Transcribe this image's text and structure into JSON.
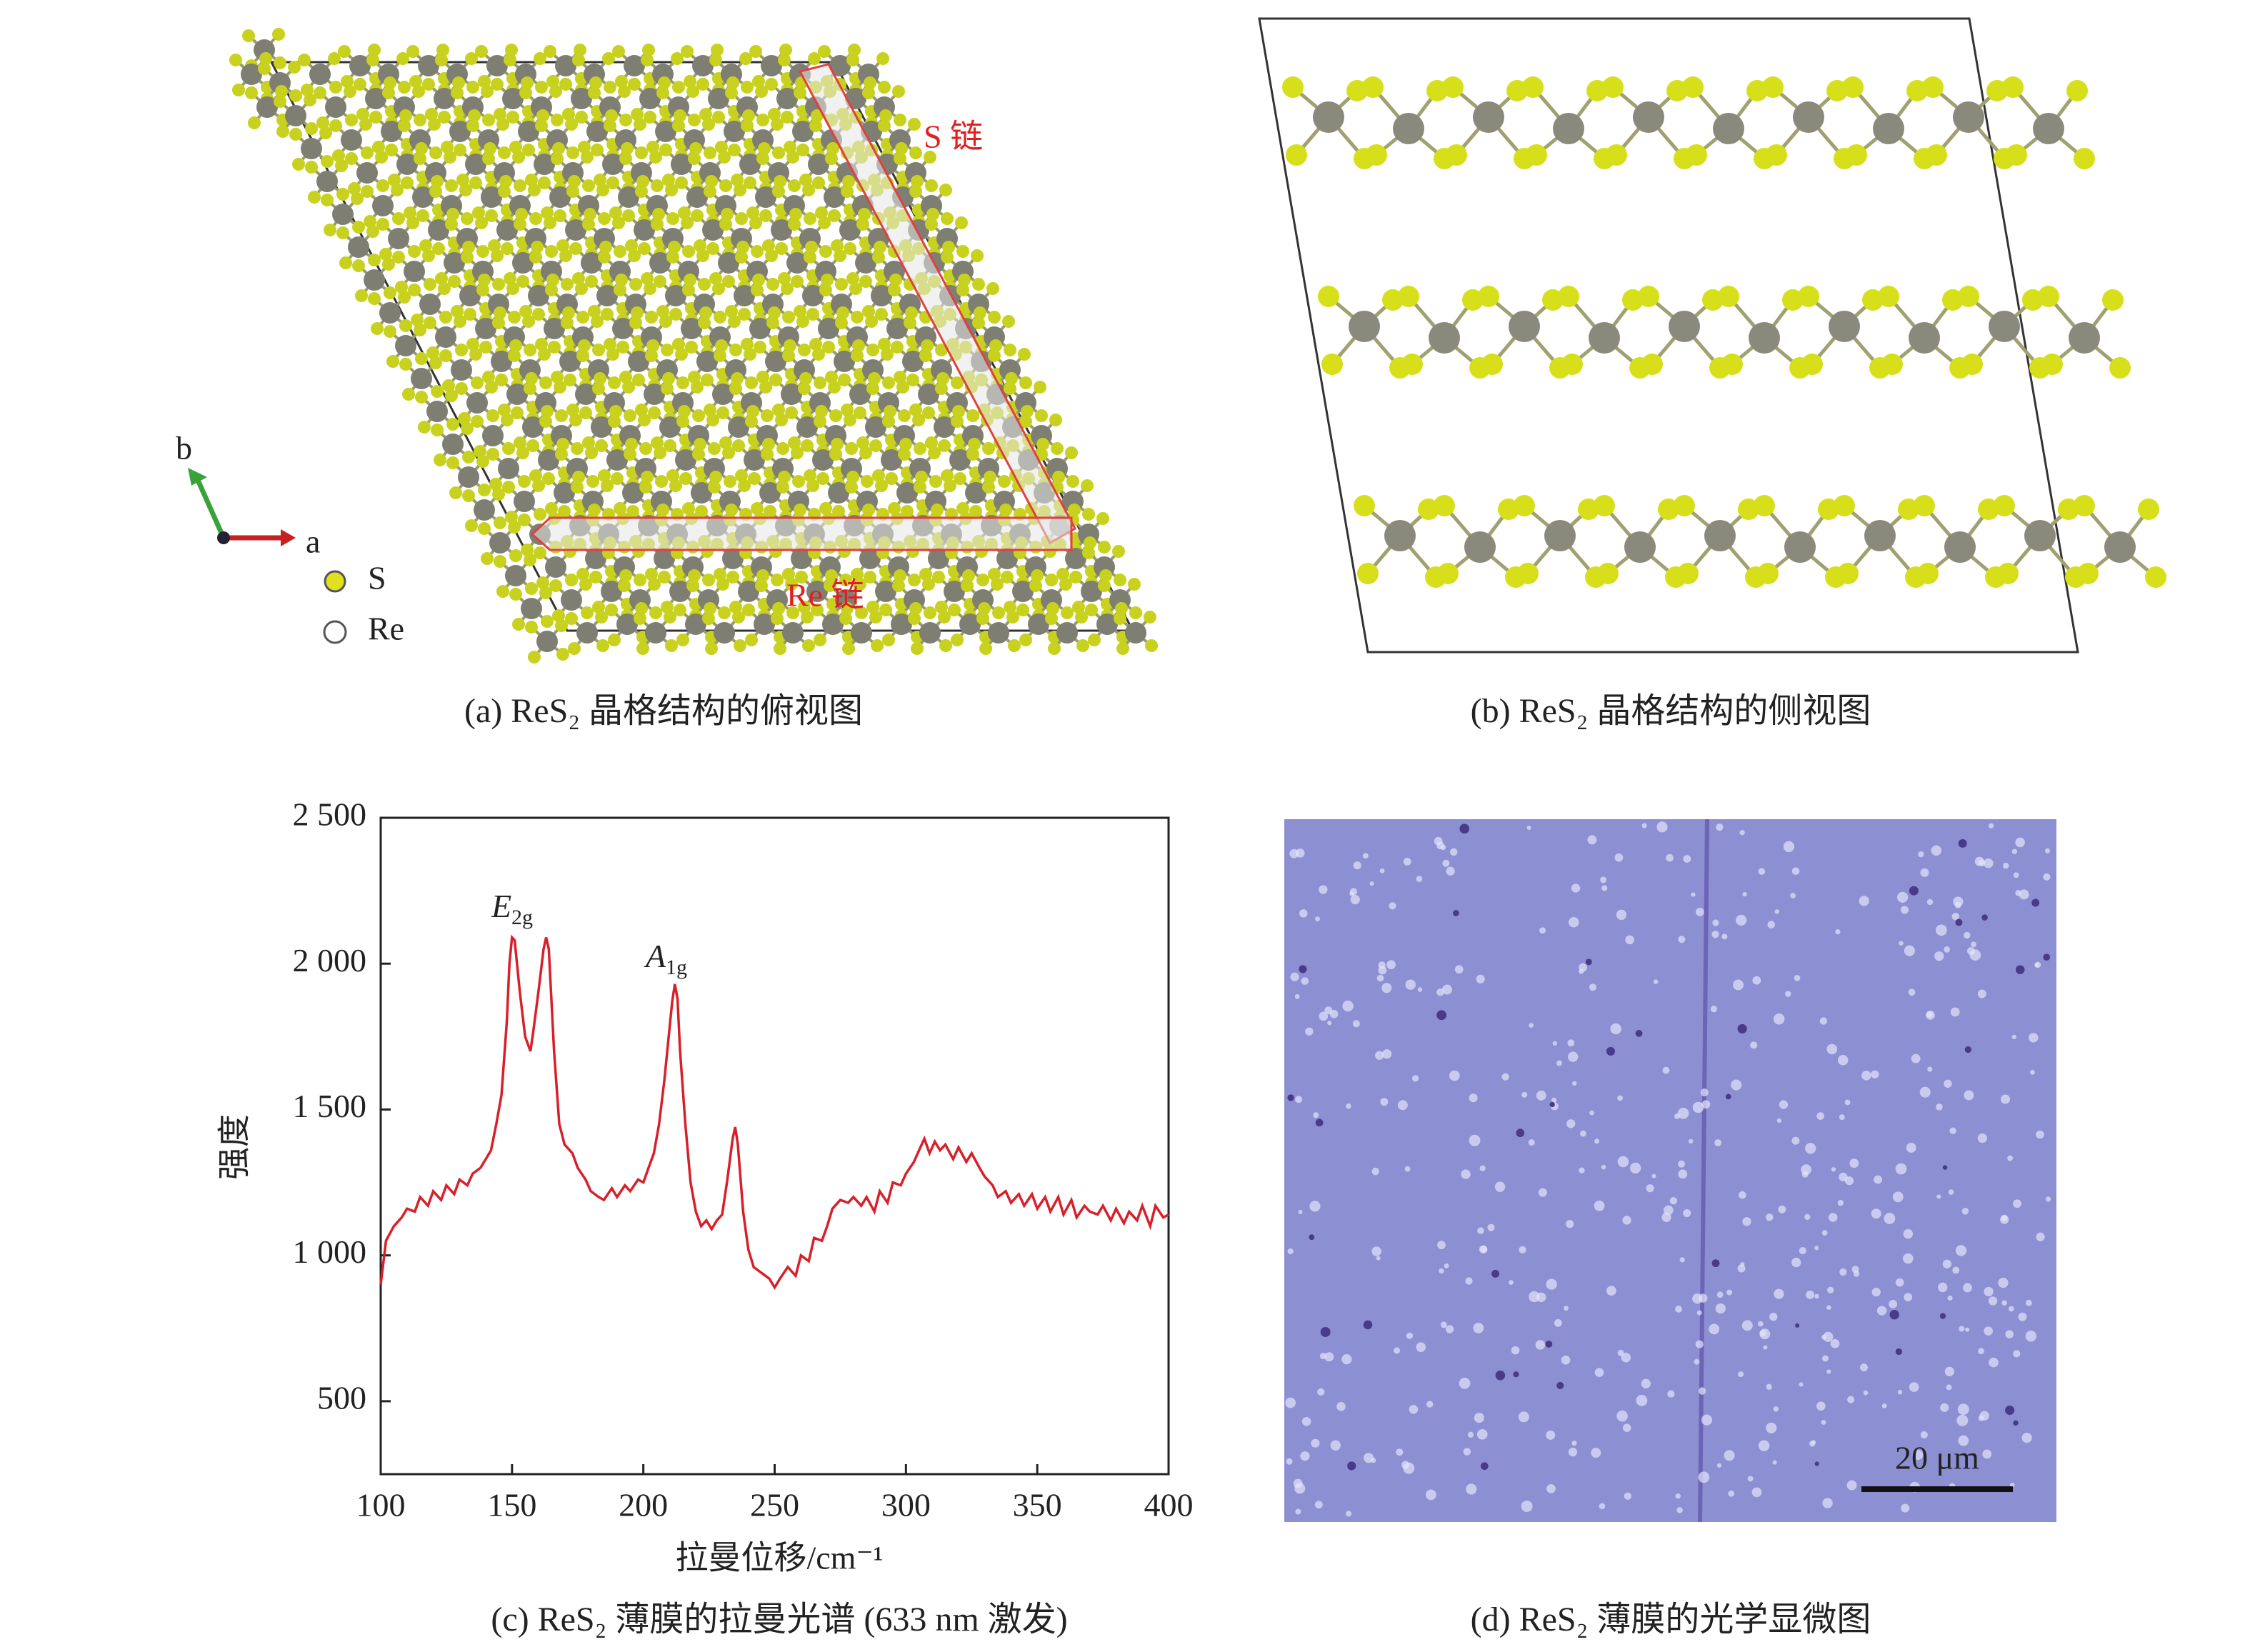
{
  "panel_a": {
    "caption": "(a) ReS₂ 晶格结构的俯视图",
    "chain_labels": [
      "S 链",
      "Re 链"
    ],
    "axes": [
      "b",
      "a"
    ],
    "legend": [
      "S",
      "Re"
    ]
  },
  "panel_b": {
    "caption": "(b) ReS₂ 晶格结构的侧视图"
  },
  "chart_data": {
    "type": "line",
    "caption": "(c) ReS₂ 薄膜的拉曼光谱 (633 nm 激发)",
    "xlabel": "拉曼位移/cm⁻¹",
    "ylabel": "强度",
    "annotations": [
      {
        "symbol": "E",
        "sub": "2g"
      },
      {
        "symbol": "A",
        "sub": "1g"
      }
    ],
    "color": "#d7202a",
    "xlim": [
      100,
      400
    ],
    "ylim": [
      250,
      2500
    ],
    "xticks": [
      100,
      150,
      200,
      250,
      300,
      350,
      400
    ],
    "yticks": [
      500,
      {
        "value": 1000,
        "label": "1 000"
      },
      {
        "value": 1500,
        "label": "1 500"
      },
      {
        "value": 2000,
        "label": "2 000"
      },
      {
        "value": 2500,
        "label": "2 500"
      }
    ],
    "x": [
      100,
      102,
      105,
      108,
      110,
      113,
      115,
      118,
      120,
      123,
      125,
      128,
      130,
      133,
      135,
      138,
      140,
      142,
      144,
      146,
      148,
      149,
      150,
      151,
      153,
      155,
      157,
      158,
      160,
      162,
      163,
      164,
      166,
      168,
      170,
      173,
      175,
      178,
      180,
      183,
      185,
      188,
      190,
      193,
      195,
      198,
      200,
      202,
      204,
      206,
      208,
      210,
      211,
      212,
      213,
      214,
      216,
      218,
      220,
      222,
      224,
      226,
      228,
      230,
      232,
      234,
      235,
      236,
      238,
      240,
      242,
      245,
      248,
      250,
      252,
      255,
      258,
      260,
      263,
      265,
      268,
      270,
      272,
      275,
      278,
      280,
      283,
      285,
      288,
      290,
      293,
      295,
      298,
      300,
      303,
      305,
      307,
      309,
      311,
      313,
      315,
      318,
      320,
      323,
      325,
      328,
      330,
      333,
      335,
      338,
      340,
      343,
      345,
      348,
      350,
      353,
      355,
      358,
      360,
      363,
      365,
      368,
      370,
      373,
      375,
      378,
      380,
      383,
      385,
      388,
      390,
      393,
      395,
      398,
      400
    ],
    "values": [
      900,
      1050,
      1100,
      1130,
      1160,
      1150,
      1200,
      1170,
      1220,
      1190,
      1240,
      1210,
      1260,
      1240,
      1280,
      1300,
      1330,
      1360,
      1450,
      1550,
      1800,
      2000,
      2090,
      2080,
      1900,
      1750,
      1700,
      1760,
      1900,
      2050,
      2090,
      2050,
      1700,
      1450,
      1380,
      1350,
      1300,
      1260,
      1220,
      1200,
      1190,
      1230,
      1200,
      1240,
      1220,
      1260,
      1250,
      1300,
      1350,
      1450,
      1600,
      1780,
      1870,
      1930,
      1880,
      1700,
      1450,
      1250,
      1150,
      1100,
      1120,
      1090,
      1120,
      1140,
      1260,
      1400,
      1440,
      1380,
      1150,
      1020,
      960,
      940,
      920,
      890,
      920,
      960,
      930,
      1000,
      980,
      1060,
      1050,
      1100,
      1160,
      1190,
      1180,
      1200,
      1170,
      1200,
      1150,
      1220,
      1180,
      1250,
      1240,
      1280,
      1320,
      1360,
      1400,
      1350,
      1390,
      1360,
      1380,
      1330,
      1370,
      1320,
      1350,
      1300,
      1270,
      1240,
      1200,
      1220,
      1180,
      1210,
      1170,
      1210,
      1160,
      1200,
      1150,
      1200,
      1140,
      1190,
      1130,
      1170,
      1150,
      1140,
      1170,
      1120,
      1160,
      1110,
      1150,
      1120,
      1170,
      1100,
      1170,
      1130,
      1140
    ]
  },
  "panel_d": {
    "caption": "(d) ReS₂ 薄膜的光学显微图",
    "scale_bar": "20 μm"
  }
}
